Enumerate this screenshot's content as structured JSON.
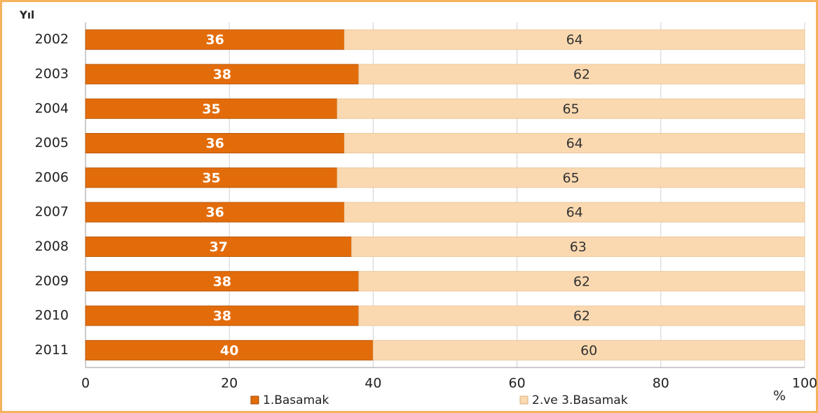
{
  "chart_data": {
    "type": "stacked-bar-horizontal",
    "y_label": "Yıl",
    "x_label": "%",
    "categories": [
      "2002",
      "2003",
      "2004",
      "2005",
      "2006",
      "2007",
      "2008",
      "2009",
      "2010",
      "2011"
    ],
    "series": [
      {
        "name": "1.Basamak",
        "color": "#e36c0a",
        "values": [
          36,
          38,
          35,
          36,
          35,
          36,
          37,
          38,
          38,
          40
        ]
      },
      {
        "name": "2.ve 3.Basamak",
        "color": "#fbd9b0",
        "values": [
          64,
          62,
          65,
          64,
          65,
          64,
          63,
          62,
          62,
          60
        ]
      }
    ],
    "xlim": [
      0,
      100
    ],
    "xticks": [
      0,
      20,
      40,
      60,
      80,
      100
    ],
    "grid": true,
    "legend": "bottom"
  }
}
